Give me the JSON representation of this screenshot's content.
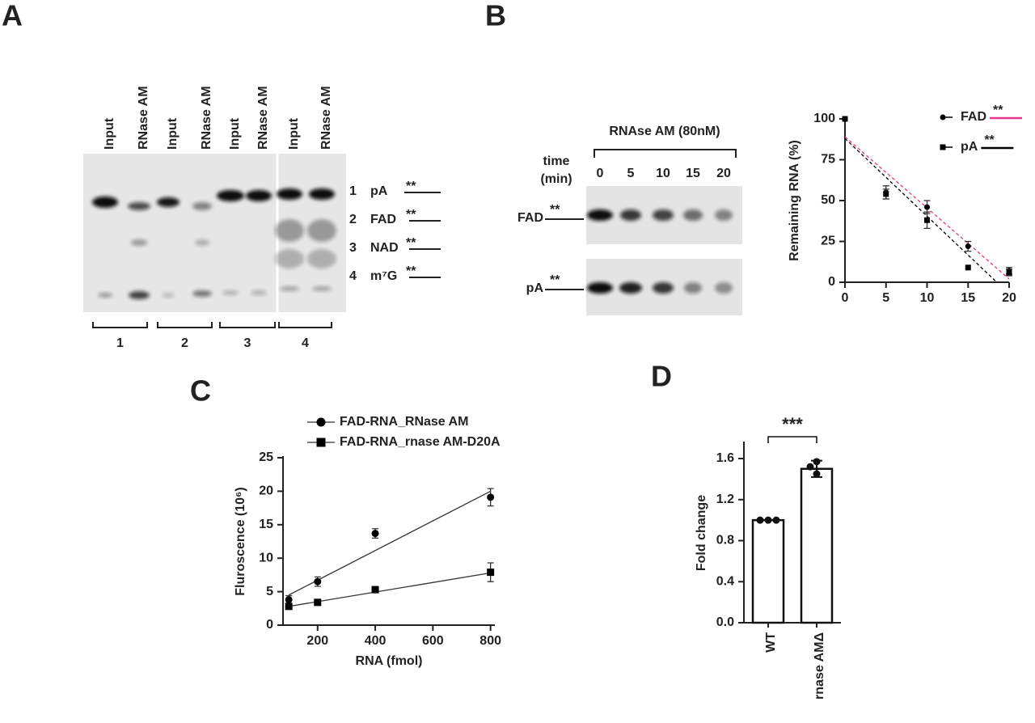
{
  "panel_a": {
    "letter": "A",
    "lanes": [
      "Input",
      "RNase AM",
      "Input",
      "RNase AM",
      "Input",
      "RNase AM",
      "Input",
      "RNase AM"
    ],
    "bands": [
      {
        "number": "1",
        "label": "pA",
        "mark": "**"
      },
      {
        "number": "2",
        "label": "FAD",
        "mark": "**"
      },
      {
        "number": "3",
        "label": "NAD",
        "mark": "**"
      },
      {
        "number": "4",
        "label": "m⁷G",
        "mark": "**"
      }
    ],
    "groups": [
      "1",
      "2",
      "3",
      "4"
    ]
  },
  "panel_b_gel": {
    "letter": "B",
    "title": "RNAse AM (80nM)",
    "time_label": [
      "time",
      "(min)"
    ],
    "times": [
      "0",
      "5",
      "10",
      "15",
      "20"
    ],
    "rows": [
      {
        "label": "FAD",
        "mark": "**"
      },
      {
        "label": "pA",
        "mark": "**"
      }
    ]
  },
  "chart_data": [
    {
      "type": "scatter",
      "ylabel": "Remaining RNA (%)",
      "x": [
        0,
        5,
        10,
        15,
        20
      ],
      "xlim": [
        0,
        20
      ],
      "xticks": [
        0,
        5,
        10,
        15,
        20
      ],
      "ylim": [
        0,
        100
      ],
      "yticks": [
        0,
        25,
        50,
        75,
        100
      ],
      "legend": "top-right",
      "series": [
        {
          "name": "FAD",
          "mark": "**",
          "color": "#e8358a",
          "marker": "circle",
          "values": [
            100,
            55,
            46,
            22,
            7
          ],
          "errors": [
            0,
            4,
            4,
            3,
            2
          ],
          "fit": {
            "x": [
              0,
              20
            ],
            "values": [
              89,
              2
            ]
          }
        },
        {
          "name": "pA",
          "mark": "**",
          "color": "#000000",
          "marker": "square",
          "values": [
            100,
            54,
            38,
            9,
            6
          ],
          "errors": [
            0,
            3,
            5,
            0,
            2
          ],
          "fit": {
            "x": [
              0,
              18.5
            ],
            "values": [
              88,
              0
            ]
          }
        }
      ]
    },
    {
      "type": "scatter",
      "panel": "C",
      "xlabel": "RNA (fmol)",
      "ylabel": "Fluroscence (10⁶)",
      "x": [
        100,
        200,
        400,
        800
      ],
      "xlim": [
        80,
        815
      ],
      "xticks": [
        200,
        400,
        600,
        800
      ],
      "ylim": [
        0,
        25
      ],
      "yticks": [
        0,
        5,
        10,
        15,
        20,
        25
      ],
      "legend": "top-left",
      "series": [
        {
          "name": "FAD-RNA_RNase AM",
          "color": "#000000",
          "marker": "circle",
          "values": [
            3.8,
            6.5,
            13.7,
            19.1
          ],
          "errors": [
            0.6,
            0.7,
            0.7,
            1.3
          ],
          "fit": {
            "x": [
              100,
              800
            ],
            "values": [
              4.5,
              20
            ]
          }
        },
        {
          "name": "FAD-RNA_rnase AM-D20A",
          "color": "#000000",
          "marker": "square",
          "values": [
            2.8,
            3.4,
            5.3,
            7.9
          ],
          "errors": [
            0.4,
            0.3,
            0.2,
            1.4
          ],
          "fit": {
            "x": [
              100,
              800
            ],
            "values": [
              2.8,
              7.8
            ]
          }
        }
      ]
    },
    {
      "type": "bar",
      "panel": "D",
      "ylabel": "Fold change",
      "categories": [
        "WT",
        "rnase AMΔ"
      ],
      "values": [
        1.0,
        1.5
      ],
      "errors": [
        0,
        0.08
      ],
      "points": [
        [
          1,
          1,
          1
        ],
        [
          1.45,
          1.52,
          1.57
        ]
      ],
      "significance": "***",
      "ylim": [
        0,
        1.75
      ],
      "yticks": [
        {
          "value": 0,
          "label": "0.0"
        },
        0.4,
        0.8,
        1.2,
        1.6
      ],
      "color": "#ffffff"
    }
  ]
}
